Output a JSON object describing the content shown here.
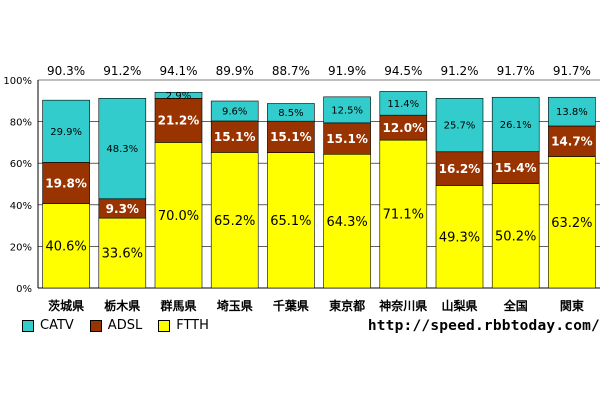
{
  "chart_data": {
    "type": "bar",
    "stacked": true,
    "categories": [
      "茨城県",
      "栃木県",
      "群馬県",
      "埼玉県",
      "千葉県",
      "東京都",
      "神奈川県",
      "山梨県",
      "全国",
      "関東"
    ],
    "totals_labels": [
      "90.3%",
      "91.2%",
      "94.1%",
      "89.9%",
      "88.7%",
      "91.9%",
      "94.5%",
      "91.2%",
      "91.7%",
      "91.7%"
    ],
    "series": [
      {
        "name": "FTTH",
        "color": "#ffff00",
        "values": [
          40.6,
          33.6,
          70.0,
          65.2,
          65.1,
          64.3,
          71.1,
          49.3,
          50.2,
          63.2
        ],
        "labels": [
          "40.6%",
          "33.6%",
          "70.0%",
          "65.2%",
          "65.1%",
          "64.3%",
          "71.1%",
          "49.3%",
          "50.2%",
          "63.2%"
        ]
      },
      {
        "name": "ADSL",
        "color": "#993300",
        "values": [
          19.8,
          9.3,
          21.2,
          15.1,
          15.1,
          15.1,
          12.0,
          16.2,
          15.4,
          14.7
        ],
        "labels": [
          "19.8%",
          "9.3%",
          "21.2%",
          "15.1%",
          "15.1%",
          "15.1%",
          "12.0%",
          "16.2%",
          "15.4%",
          "14.7%"
        ]
      },
      {
        "name": "CATV",
        "color": "#33cccc",
        "values": [
          29.9,
          48.3,
          2.9,
          9.6,
          8.5,
          12.5,
          11.4,
          25.7,
          26.1,
          13.8
        ],
        "labels": [
          "29.9%",
          "48.3%",
          "2.9%",
          "9.6%",
          "8.5%",
          "12.5%",
          "11.4%",
          "25.7%",
          "26.1%",
          "13.8%"
        ]
      }
    ],
    "ylim": [
      0,
      100
    ],
    "yticks": [
      "0%",
      "20%",
      "40%",
      "60%",
      "80%",
      "100%"
    ],
    "grid": true,
    "legend_placement": "bottom-left"
  },
  "legend": [
    {
      "name": "CATV",
      "color": "#33cccc"
    },
    {
      "name": "ADSL",
      "color": "#993300"
    },
    {
      "name": "FTTH",
      "color": "#ffff00"
    }
  ],
  "source_url": "http://speed.rbbtoday.com/"
}
